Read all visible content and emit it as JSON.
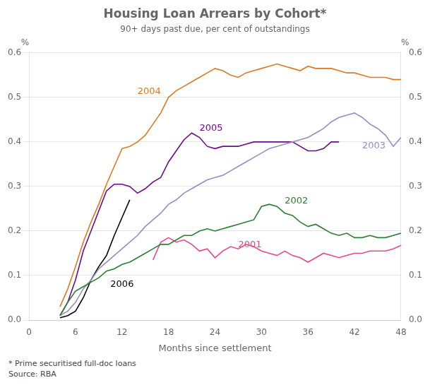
{
  "chart_data": {
    "type": "line",
    "title": "Housing Loan Arrears by Cohort*",
    "subtitle": "90+ days past due, per cent of outstandings",
    "xlabel": "Months since settlement",
    "ylabel": "%",
    "y2label": "%",
    "footnotes": [
      "*  Prime securitised full-doc loans",
      "Source: RBA"
    ],
    "xlim": [
      0,
      48
    ],
    "xticks": [
      0,
      6,
      12,
      18,
      24,
      30,
      36,
      42,
      48
    ],
    "ylim": [
      0.0,
      0.6
    ],
    "yticks": [
      {
        "value": 0.0,
        "label": "0.0"
      },
      0.1,
      0.2,
      0.3,
      0.4,
      0.5,
      0.6
    ],
    "y2lim": [
      0.0,
      0.6
    ],
    "y2ticks": [
      {
        "value": 0.0,
        "label": "0.0"
      },
      0.1,
      0.2,
      0.3,
      0.4,
      0.5,
      0.6
    ],
    "grid": "y",
    "series": [
      {
        "color": "#2e7d32",
        "x": [
          4,
          5,
          6,
          7,
          8,
          9,
          10,
          11,
          12,
          13,
          14,
          15,
          16,
          17,
          18,
          19,
          20,
          21,
          22,
          23,
          24,
          25,
          26,
          27,
          28,
          29,
          30,
          31,
          32,
          33,
          34,
          35,
          36,
          37,
          38,
          39,
          40,
          41,
          42,
          43,
          44,
          45,
          46,
          47,
          48
        ],
        "values": [
          0.01,
          0.04,
          0.065,
          0.075,
          0.085,
          0.095,
          0.11,
          0.115,
          0.125,
          0.13,
          0.14,
          0.15,
          0.16,
          0.17,
          0.17,
          0.18,
          0.19,
          0.19,
          0.2,
          0.205,
          0.2,
          0.205,
          0.21,
          0.215,
          0.22,
          0.225,
          0.255,
          0.26,
          0.255,
          0.24,
          0.235,
          0.22,
          0.21,
          0.215,
          0.205,
          0.195,
          0.19,
          0.195,
          0.185,
          0.185,
          0.19,
          0.185,
          0.185,
          0.19,
          0.195
        ]
      },
      {
        "color": "#e8488a",
        "x": [
          16,
          17,
          18,
          19,
          20,
          21,
          22,
          23,
          24,
          25,
          26,
          27,
          28,
          29,
          30,
          31,
          32,
          33,
          34,
          35,
          36,
          37,
          38,
          39,
          40,
          41,
          42,
          43,
          44,
          45,
          46,
          47,
          48
        ],
        "values": [
          0.135,
          0.175,
          0.185,
          0.175,
          0.18,
          0.17,
          0.155,
          0.16,
          0.14,
          0.155,
          0.165,
          0.16,
          0.17,
          0.165,
          0.155,
          0.15,
          0.145,
          0.155,
          0.145,
          0.14,
          0.13,
          0.14,
          0.15,
          0.145,
          0.14,
          0.145,
          0.15,
          0.15,
          0.155,
          0.155,
          0.155,
          0.16,
          0.168
        ]
      },
      {
        "color": "#9090c8",
        "x": [
          4,
          5,
          6,
          7,
          8,
          9,
          10,
          11,
          12,
          13,
          14,
          15,
          16,
          17,
          18,
          19,
          20,
          21,
          22,
          23,
          24,
          25,
          26,
          27,
          28,
          29,
          30,
          31,
          32,
          33,
          34,
          35,
          36,
          37,
          38,
          39,
          40,
          41,
          42,
          43,
          44,
          45,
          46,
          47,
          48
        ],
        "values": [
          0.01,
          0.02,
          0.04,
          0.07,
          0.09,
          0.115,
          0.13,
          0.145,
          0.16,
          0.175,
          0.19,
          0.21,
          0.225,
          0.24,
          0.26,
          0.27,
          0.285,
          0.295,
          0.305,
          0.315,
          0.32,
          0.325,
          0.335,
          0.345,
          0.355,
          0.365,
          0.375,
          0.385,
          0.39,
          0.395,
          0.4,
          0.405,
          0.41,
          0.42,
          0.43,
          0.445,
          0.455,
          0.46,
          0.465,
          0.455,
          0.44,
          0.43,
          0.415,
          0.39,
          0.41
        ]
      },
      {
        "color": "#e07820",
        "x": [
          4,
          5,
          6,
          7,
          8,
          9,
          10,
          11,
          12,
          13,
          14,
          15,
          16,
          17,
          18,
          19,
          20,
          21,
          22,
          23,
          24,
          25,
          26,
          27,
          28,
          29,
          30,
          31,
          32,
          33,
          34,
          35,
          36,
          37,
          38,
          39,
          40,
          41,
          42,
          43,
          44,
          45,
          46,
          47,
          48
        ],
        "values": [
          0.03,
          0.07,
          0.12,
          0.175,
          0.22,
          0.26,
          0.305,
          0.345,
          0.385,
          0.39,
          0.4,
          0.415,
          0.44,
          0.465,
          0.5,
          0.515,
          0.525,
          0.535,
          0.545,
          0.555,
          0.565,
          0.56,
          0.55,
          0.545,
          0.555,
          0.56,
          0.565,
          0.57,
          0.575,
          0.57,
          0.565,
          0.56,
          0.57,
          0.565,
          0.565,
          0.565,
          0.56,
          0.555,
          0.555,
          0.55,
          0.545,
          0.545,
          0.545,
          0.54,
          0.54
        ]
      },
      {
        "color": "#6a0a8c",
        "x": [
          4,
          5,
          6,
          7,
          8,
          9,
          10,
          11,
          12,
          13,
          14,
          15,
          16,
          17,
          18,
          19,
          20,
          21,
          22,
          23,
          24,
          25,
          26,
          27,
          28,
          29,
          30,
          31,
          32,
          33,
          34,
          35,
          36,
          37,
          38,
          39,
          40
        ],
        "values": [
          0.01,
          0.04,
          0.09,
          0.155,
          0.2,
          0.245,
          0.29,
          0.305,
          0.305,
          0.3,
          0.285,
          0.295,
          0.31,
          0.32,
          0.355,
          0.38,
          0.405,
          0.42,
          0.41,
          0.39,
          0.385,
          0.39,
          0.39,
          0.39,
          0.395,
          0.4,
          0.4,
          0.4,
          0.4,
          0.4,
          0.4,
          0.39,
          0.38,
          0.38,
          0.385,
          0.4,
          0.4
        ]
      },
      {
        "color": "#000000",
        "x": [
          4,
          5,
          6,
          7,
          8,
          9,
          10,
          11,
          12,
          13
        ],
        "values": [
          0.005,
          0.01,
          0.02,
          0.05,
          0.09,
          0.12,
          0.145,
          0.19,
          0.23,
          0.27
        ]
      }
    ],
    "annotations": [
      {
        "text": "2001",
        "x": 27,
        "y": 0.163,
        "color": "#e8488a"
      },
      {
        "text": "2002",
        "x": 33,
        "y": 0.262,
        "color": "#2e7d32"
      },
      {
        "text": "2003",
        "x": 43,
        "y": 0.385,
        "color": "#9090c8"
      },
      {
        "text": "2004",
        "x": 14,
        "y": 0.508,
        "color": "#e07820"
      },
      {
        "text": "2005",
        "x": 22,
        "y": 0.425,
        "color": "#6a0a8c"
      },
      {
        "text": "2006",
        "x": 10.5,
        "y": 0.075,
        "color": "#000000"
      }
    ]
  }
}
